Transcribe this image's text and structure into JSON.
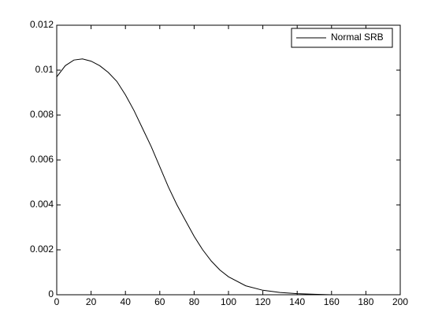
{
  "chart_data": {
    "type": "line",
    "x": [
      0,
      5,
      10,
      15,
      20,
      25,
      30,
      35,
      40,
      45,
      50,
      55,
      60,
      65,
      70,
      75,
      80,
      85,
      90,
      95,
      100,
      110,
      120,
      130,
      140,
      150,
      160,
      170,
      180,
      190,
      200
    ],
    "series": [
      {
        "name": "Normal SRB",
        "color": "#000000",
        "values": [
          0.0097,
          0.0102,
          0.01045,
          0.0105,
          0.0104,
          0.0102,
          0.0099,
          0.0095,
          0.0089,
          0.0082,
          0.0074,
          0.0066,
          0.0057,
          0.0048,
          0.004,
          0.0033,
          0.0026,
          0.002,
          0.0015,
          0.0011,
          0.0008,
          0.0004,
          0.0002,
          0.0001,
          5e-05,
          2e-05,
          0,
          0,
          0,
          0,
          0
        ]
      }
    ],
    "xlim": [
      0,
      200
    ],
    "xticks": [
      0,
      20,
      40,
      60,
      80,
      100,
      120,
      140,
      160,
      180,
      200
    ],
    "ylim": [
      0,
      0.012
    ],
    "yticks": [
      0,
      0.002,
      0.004,
      0.006,
      0.008,
      0.01,
      0.012
    ],
    "legend": "northeast"
  }
}
